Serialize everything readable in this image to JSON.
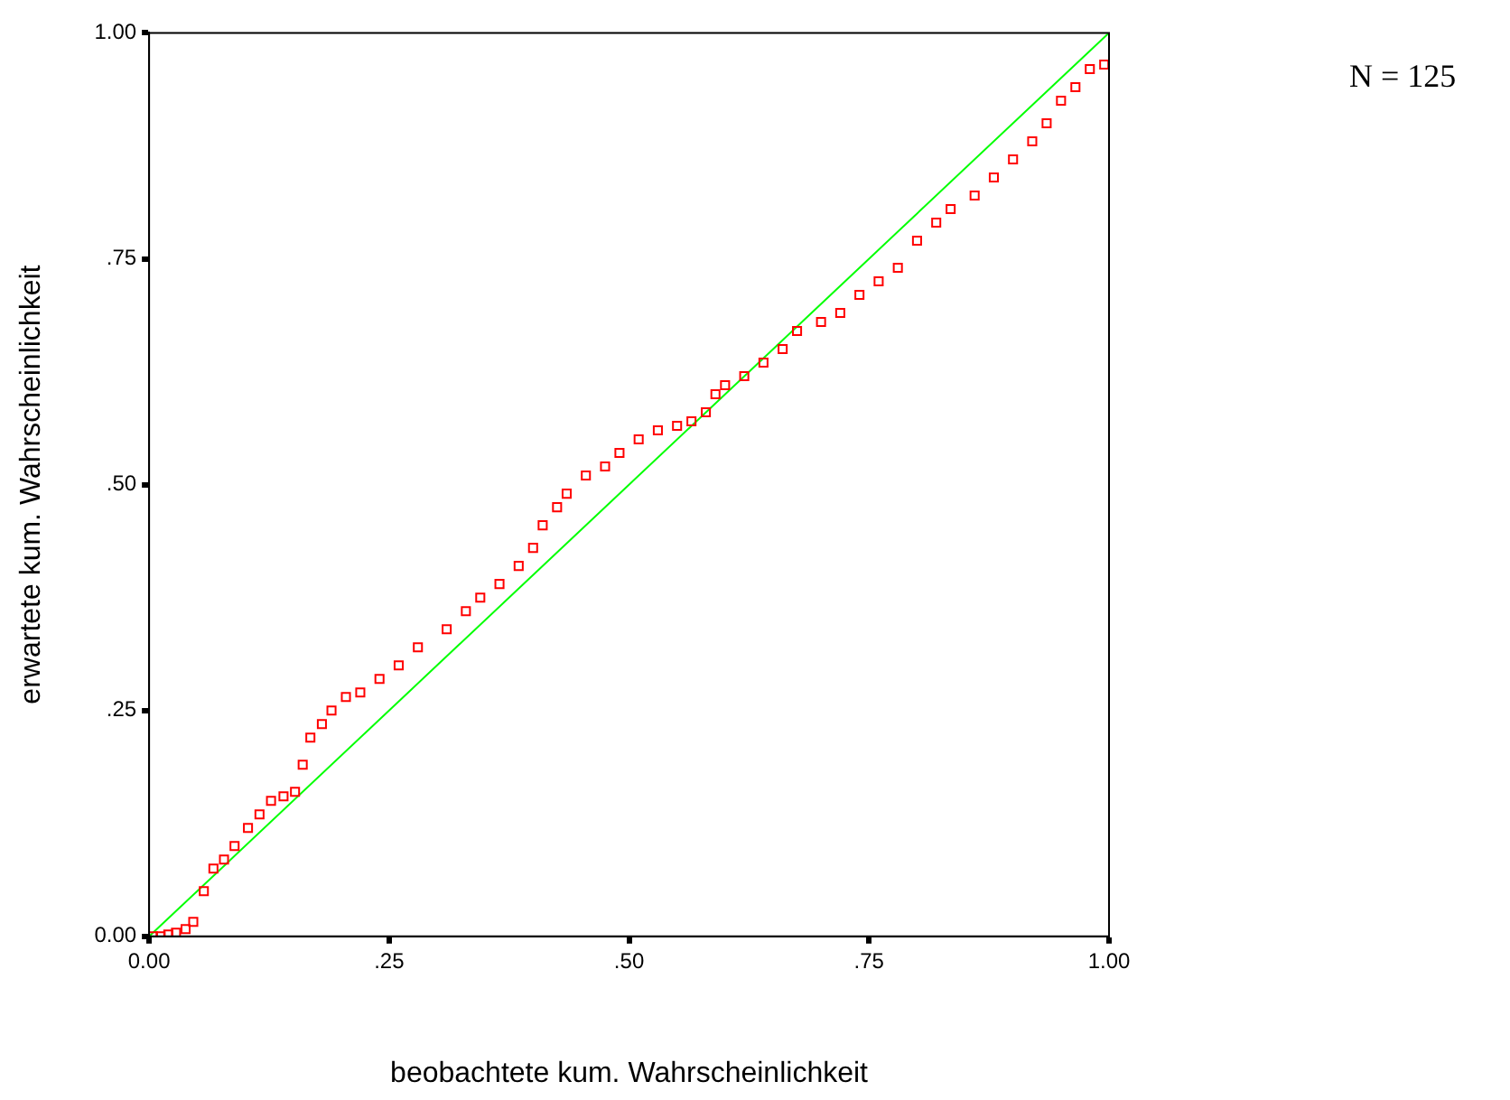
{
  "chart_data": {
    "type": "scatter",
    "xlabel": "beobachtete kum. Wahrscheinlichkeit",
    "ylabel": "erwartete kum. Wahrscheinlichkeit",
    "annotations": [
      "N = 125"
    ],
    "marker": "square",
    "xlim": [
      0,
      1
    ],
    "ylim": [
      0,
      1
    ],
    "xticks": [
      {
        "value": 0,
        "label": "0.00"
      },
      {
        "value": 0.25,
        "label": ".25"
      },
      {
        "value": 0.5,
        "label": ".50"
      },
      {
        "value": 0.75,
        "label": ".75"
      },
      {
        "value": 1,
        "label": "1.00"
      }
    ],
    "yticks": [
      {
        "value": 0,
        "label": "0.00"
      },
      {
        "value": 0.25,
        "label": ".25"
      },
      {
        "value": 0.5,
        "label": ".50"
      },
      {
        "value": 0.75,
        "label": ".75"
      },
      {
        "value": 1,
        "label": "1.00"
      }
    ],
    "series": [
      {
        "color": "#ff0000",
        "x": [
          0.004,
          0.012,
          0.02,
          0.028,
          0.038,
          0.046,
          0.057,
          0.067,
          0.078,
          0.089,
          0.103,
          0.115,
          0.127,
          0.14,
          0.152,
          0.16,
          0.168,
          0.18,
          0.19,
          0.205,
          0.22,
          0.24,
          0.26,
          0.28,
          0.31,
          0.33,
          0.345,
          0.365,
          0.385,
          0.4,
          0.41,
          0.425,
          0.435,
          0.455,
          0.475,
          0.49,
          0.51,
          0.53,
          0.55,
          0.565,
          0.58,
          0.59,
          0.6,
          0.62,
          0.64,
          0.66,
          0.675,
          0.7,
          0.72,
          0.74,
          0.76,
          0.78,
          0.8,
          0.82,
          0.835,
          0.86,
          0.88,
          0.9,
          0.92,
          0.935,
          0.95,
          0.965,
          0.98,
          0.995
        ],
        "values": [
          0.0,
          0.0,
          0.002,
          0.004,
          0.008,
          0.016,
          0.05,
          0.075,
          0.085,
          0.1,
          0.12,
          0.135,
          0.15,
          0.155,
          0.16,
          0.19,
          0.22,
          0.235,
          0.25,
          0.265,
          0.27,
          0.285,
          0.3,
          0.32,
          0.34,
          0.36,
          0.375,
          0.39,
          0.41,
          0.43,
          0.455,
          0.475,
          0.49,
          0.51,
          0.52,
          0.535,
          0.55,
          0.56,
          0.565,
          0.57,
          0.58,
          0.6,
          0.61,
          0.62,
          0.635,
          0.65,
          0.67,
          0.68,
          0.69,
          0.71,
          0.725,
          0.74,
          0.77,
          0.79,
          0.805,
          0.82,
          0.84,
          0.86,
          0.88,
          0.9,
          0.925,
          0.94,
          0.96,
          0.965
        ]
      },
      {
        "type": "line",
        "color": "#00ff00",
        "marker": "none",
        "x": [
          0,
          1
        ],
        "values": [
          0,
          1
        ]
      }
    ]
  }
}
